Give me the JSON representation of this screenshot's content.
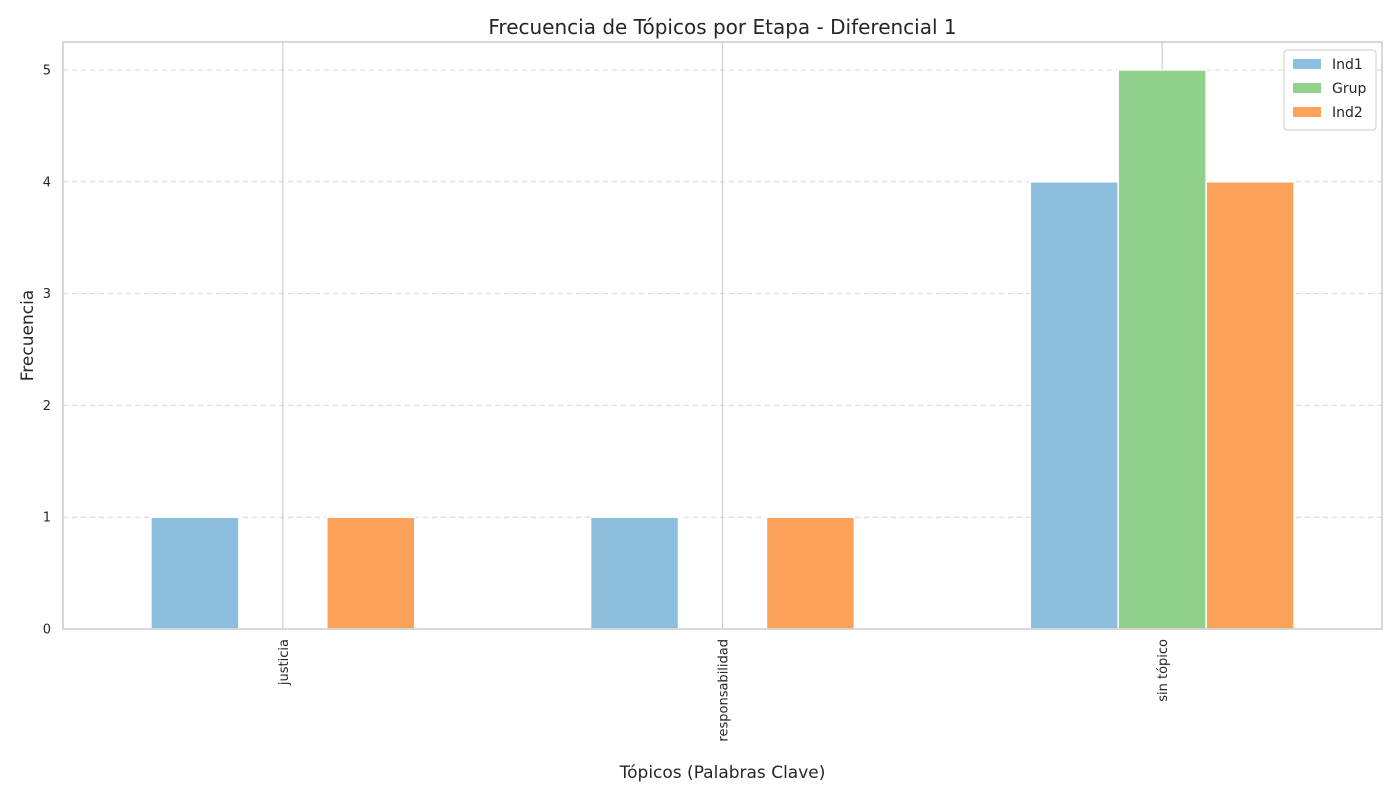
{
  "chart_data": {
    "type": "bar",
    "title": "Frecuencia de Tópicos por Etapa - Diferencial 1",
    "xlabel": "Tópicos (Palabras Clave)",
    "ylabel": "Frecuencia",
    "categories": [
      "justicia",
      "responsabilidad",
      "sin tópico"
    ],
    "series": [
      {
        "name": "Ind1",
        "values": [
          1,
          1,
          4
        ],
        "color": "#8bbfdd"
      },
      {
        "name": "Grup",
        "values": [
          0,
          0,
          5
        ],
        "color": "#8fd08a"
      },
      {
        "name": "Ind2",
        "values": [
          1,
          1,
          4
        ],
        "color": "#fda25a"
      }
    ],
    "ylim": [
      0,
      5.25
    ],
    "yticks": [
      0,
      1,
      2,
      3,
      4,
      5
    ],
    "grid": true,
    "legend_position": "top-right"
  }
}
